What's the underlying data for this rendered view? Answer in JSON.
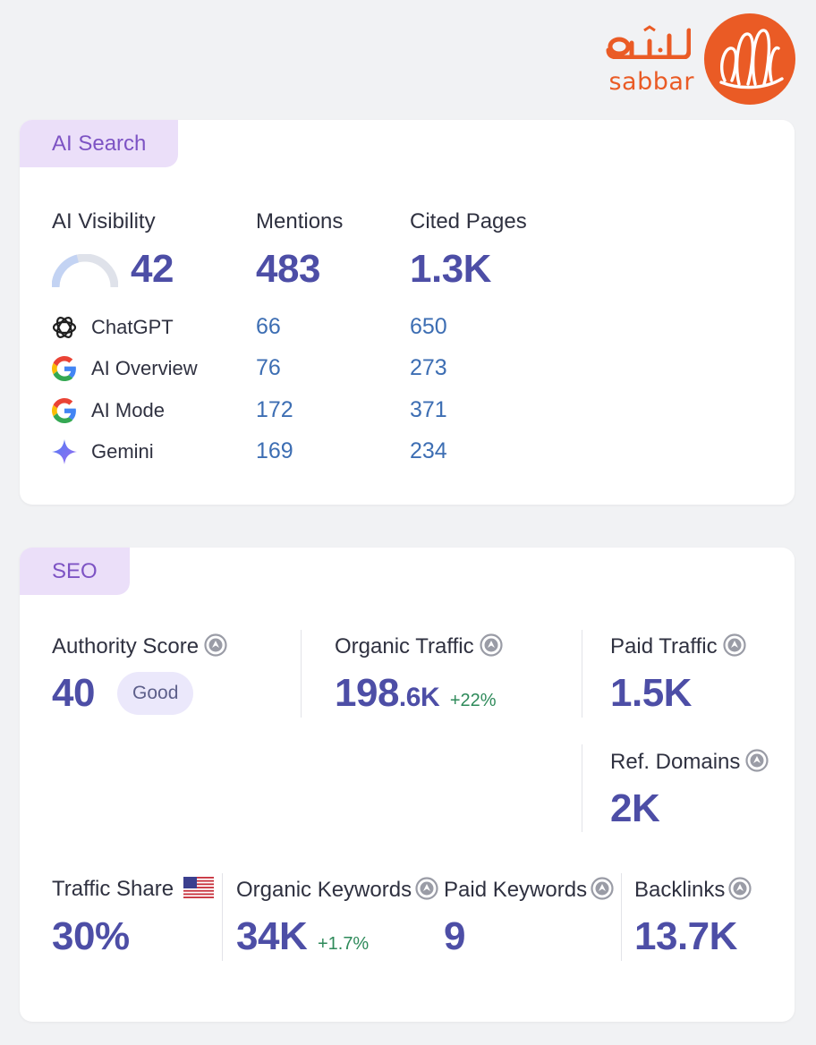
{
  "brand": {
    "name": "sabbar",
    "arabic": "صبّار"
  },
  "ai_search": {
    "tag": "AI Search",
    "visibility": {
      "label": "AI Visibility",
      "value": "42",
      "gauge_fraction": 0.42
    },
    "mentions": {
      "label": "Mentions",
      "value": "483"
    },
    "cited_pages": {
      "label": "Cited Pages",
      "value": "1.3K"
    },
    "rows": [
      {
        "icon": "chatgpt-icon",
        "label": "ChatGPT",
        "mentions": "66",
        "cited": "650"
      },
      {
        "icon": "google-icon",
        "label": "AI Overview",
        "mentions": "76",
        "cited": "273"
      },
      {
        "icon": "google-icon",
        "label": "AI Mode",
        "mentions": "172",
        "cited": "371"
      },
      {
        "icon": "gemini-icon",
        "label": "Gemini",
        "mentions": "169",
        "cited": "234"
      }
    ]
  },
  "seo": {
    "tag": "SEO",
    "authority_score": {
      "label": "Authority Score",
      "value": "40",
      "badge": "Good"
    },
    "organic_traffic": {
      "label": "Organic Traffic",
      "value_main": "198",
      "value_suffix": ".6K",
      "delta": "+22%"
    },
    "paid_traffic": {
      "label": "Paid Traffic",
      "value": "1.5K"
    },
    "ref_domains": {
      "label": "Ref. Domains",
      "value": "2K"
    },
    "traffic_share": {
      "label": "Traffic Share",
      "value": "30%"
    },
    "organic_keywords": {
      "label": "Organic Keywords",
      "value": "34K",
      "delta": "+1.7%"
    },
    "paid_keywords": {
      "label": "Paid Keywords",
      "value": "9"
    },
    "backlinks": {
      "label": "Backlinks",
      "value": "13.7K"
    }
  },
  "colors": {
    "accent": "#4d4ea6",
    "brand": "#ea5b25",
    "tag_bg": "#ebdff9",
    "positive": "#2e8a5a"
  }
}
